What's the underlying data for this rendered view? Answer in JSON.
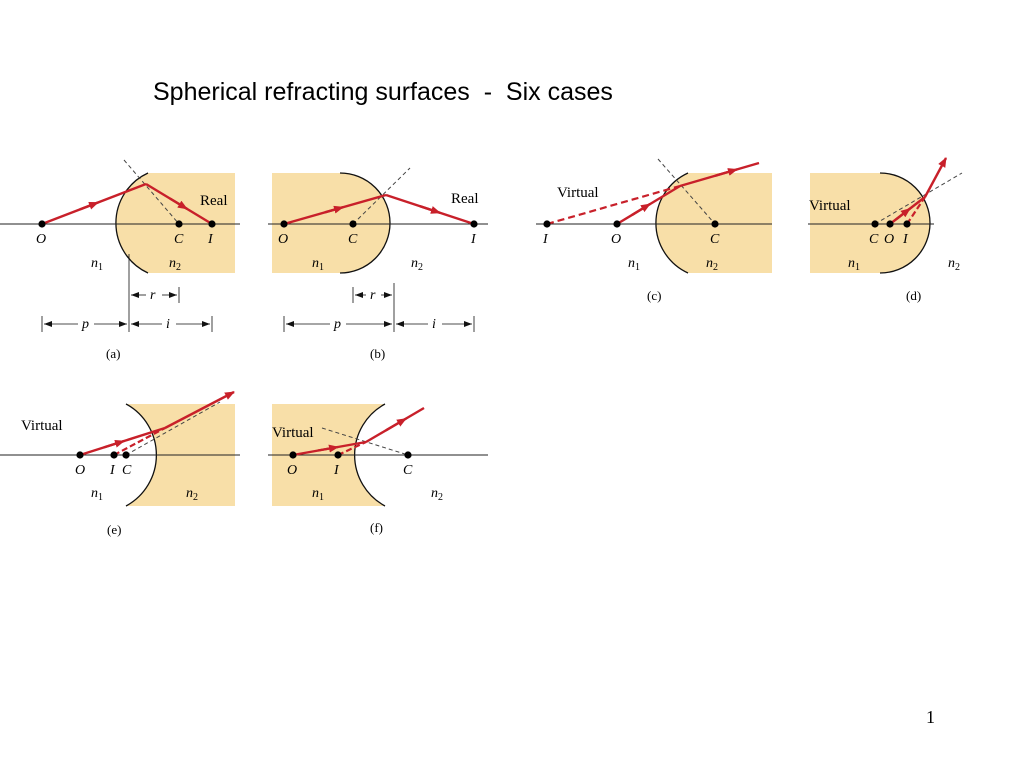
{
  "slide": {
    "title": "Spherical refracting surfaces  -  Six cases",
    "page_number": "1"
  },
  "colors": {
    "medium": "#f8dfa8",
    "ray": "#c8202a",
    "line": "#111111"
  },
  "panels": {
    "a": {
      "caption": "(a)",
      "label": "Real",
      "O": "O",
      "C": "C",
      "I": "I",
      "n1": "n",
      "n1_sub": "1",
      "n2": "n",
      "n2_sub": "2",
      "r": "r",
      "p": "p",
      "i": "i"
    },
    "b": {
      "caption": "(b)",
      "label": "Real",
      "O": "O",
      "C": "C",
      "I": "I",
      "n1": "n",
      "n1_sub": "1",
      "n2": "n",
      "n2_sub": "2",
      "r": "r",
      "p": "p",
      "i": "i"
    },
    "c": {
      "caption": "(c)",
      "label": "Virtual",
      "O": "O",
      "C": "C",
      "I": "I",
      "n1": "n",
      "n1_sub": "1",
      "n2": "n",
      "n2_sub": "2"
    },
    "d": {
      "caption": "(d)",
      "label": "Virtual",
      "O": "O",
      "C": "C",
      "I": "I",
      "n1": "n",
      "n1_sub": "1",
      "n2": "n",
      "n2_sub": "2"
    },
    "e": {
      "caption": "(e)",
      "label": "Virtual",
      "O": "O",
      "C": "C",
      "I": "I",
      "n1": "n",
      "n1_sub": "1",
      "n2": "n",
      "n2_sub": "2"
    },
    "f": {
      "caption": "(f)",
      "label": "Virtual",
      "O": "O",
      "C": "C",
      "I": "I",
      "n1": "n",
      "n1_sub": "1",
      "n2": "n",
      "n2_sub": "2"
    }
  }
}
